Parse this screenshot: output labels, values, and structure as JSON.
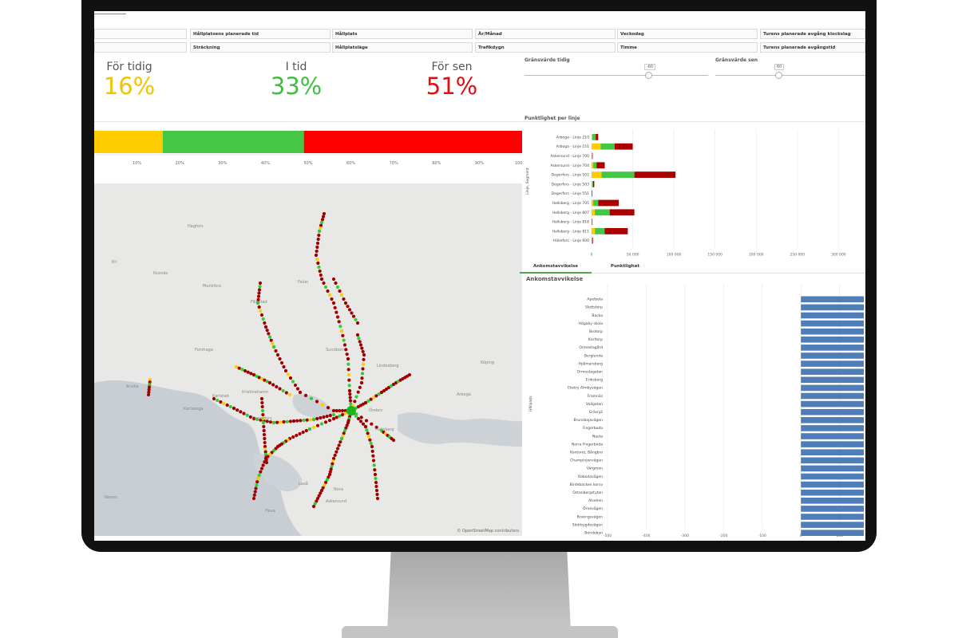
{
  "filters": {
    "row1": [
      "",
      "Hållplatsens planerade tid",
      "Hållplats",
      "År/Månad",
      "Veckodag",
      "Turens planerade avgång klockslag"
    ],
    "row2": [
      "",
      "Sträckning",
      "Hållplatsläge",
      "Trafikdygn",
      "Timme",
      "Turens planerade avgångstid"
    ]
  },
  "kpis": [
    {
      "label": "För tidig",
      "value": "16%",
      "color": "#f0c400"
    },
    {
      "label": "I tid",
      "value": "33%",
      "color": "#3fbf3f"
    },
    {
      "label": "För sen",
      "value": "51%",
      "color": "#e01010"
    }
  ],
  "sliders": [
    {
      "label": "Gränsvärde tidig",
      "value": "-60"
    },
    {
      "label": "Gränsvärde sen",
      "value": "60"
    }
  ],
  "stacked_bar": {
    "segments": [
      {
        "name": "För tidig",
        "value": 16,
        "color": "#ffcc00"
      },
      {
        "name": "I tid",
        "value": 33,
        "color": "#44c744"
      },
      {
        "name": "För sen",
        "value": 51,
        "color": "#ff0000"
      }
    ],
    "ticks": [
      "10%",
      "20%",
      "30%",
      "40%",
      "50%",
      "60%",
      "70%",
      "80%",
      "90%",
      "100%"
    ]
  },
  "map": {
    "attribution": "© OpenStreetMap contributors",
    "places": [
      "Kil",
      "Nusnäs",
      "Falun",
      "Sundborn",
      "Hagfors",
      "Munkfors",
      "Filipstad",
      "Forshaga",
      "Karlstad",
      "Arvika",
      "Kristinehamn",
      "Degerfors",
      "Örebro",
      "Nora",
      "Lindesberg",
      "Hallsberg",
      "Arboga",
      "Köping",
      "Laxå",
      "Askersund",
      "Hova",
      "Karlskoga",
      "Vänern"
    ]
  },
  "chart_data": [
    {
      "type": "bar",
      "title": "Punktlighet per linje",
      "xlabel": "Antal",
      "ylabel": "Linje, Segment",
      "orientation": "horizontal",
      "stacked": true,
      "categories": [
        "Arboga - Linje 210",
        "Arboga - Linje 151",
        "Askersund - Linje 700",
        "Askersund - Linje 704",
        "Degerfors - Linje 502",
        "Degerfors - Linje 503",
        "Degerfors - Linje 551",
        "Hallsberg - Linje 705",
        "Hallsberg - Linje 807",
        "Hallsberg - Linje 818",
        "Hallsberg - Linje 811",
        "Hällefors - Linje 600"
      ],
      "series": [
        {
          "name": "För tidig",
          "color": "#ffcc00",
          "values": [
            1000,
            11000,
            500,
            2000,
            12000,
            800,
            200,
            2000,
            4000,
            300,
            4000,
            300
          ]
        },
        {
          "name": "I tid",
          "color": "#44c744",
          "values": [
            4000,
            17000,
            300,
            4000,
            40000,
            1000,
            200,
            6000,
            18000,
            300,
            12000,
            500
          ]
        },
        {
          "name": "För sen",
          "color": "#aa0000",
          "values": [
            3000,
            22000,
            300,
            10000,
            50000,
            1500,
            300,
            25000,
            30000,
            400,
            28000,
            800
          ]
        }
      ],
      "xticks": [
        "0",
        "50 000",
        "100 000",
        "150 000",
        "200 000",
        "250 000",
        "300 000"
      ],
      "xlim": [
        0,
        320000
      ]
    },
    {
      "type": "bar",
      "title": "Ankomstavvikelse",
      "ylabel": "Hållplats",
      "orientation": "horizontal",
      "color": "#4e7db8",
      "categories": [
        "Apelbola",
        "Slottstorp",
        "Backa",
        "Högaby skola",
        "Brotorp",
        "Karltorp",
        "Ormestagård",
        "Berglunda",
        "Hjälmarsberg",
        "Ormestagatan",
        "Eriksberg",
        "Eketry Almbyvägen",
        "Framnäs",
        "Vallgatan",
        "Gräsnjö",
        "Brunsbojavägen",
        "Fingerboda",
        "Nasta",
        "Norra Fingerboda",
        "Kontoret, Bångbro",
        "Champinjonvägen",
        "Vargmon",
        "Rabodavägen",
        "Birdebacken korsv",
        "Ostanbergstytan",
        "Alsehen",
        "Örnevägen",
        "Brukngsvägen",
        "Södrbygdevägen",
        "Bondebyn"
      ],
      "values": [
        420,
        410,
        400,
        395,
        390,
        395,
        385,
        380,
        375,
        372,
        370,
        365,
        360,
        358,
        355,
        352,
        350,
        348,
        345,
        345,
        342,
        340,
        338,
        337,
        335,
        333,
        330,
        328,
        327,
        325
      ],
      "xticks": [
        "-500",
        "-400",
        "-300",
        "-200",
        "-100",
        "0",
        "100",
        "200",
        "300",
        "400"
      ],
      "xlim": [
        -500,
        400
      ]
    }
  ],
  "tabs": [
    {
      "label": "Ankomstavvikelse",
      "active": true
    },
    {
      "label": "Punktlighet",
      "active": false
    }
  ]
}
